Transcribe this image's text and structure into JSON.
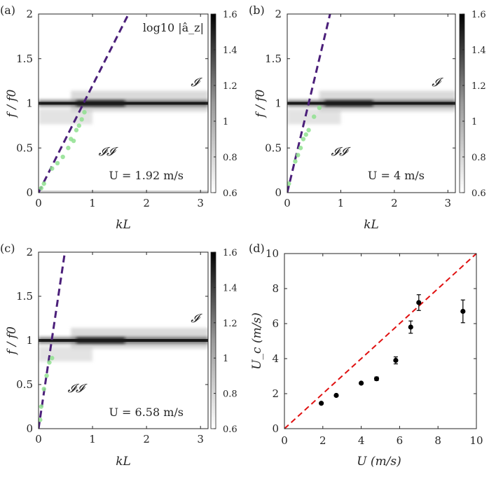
{
  "chart_data": [
    {
      "panel": "(a)",
      "type": "heatmap",
      "xlabel": "kL",
      "ylabel": "f / f0",
      "xlim": [
        0,
        3.14
      ],
      "ylim": [
        0,
        2
      ],
      "xticks": [
        "0",
        "1",
        "2",
        "3"
      ],
      "yticks": [
        "0",
        "0.5",
        "1",
        "1.5",
        "2"
      ],
      "colorbar": {
        "label": "log10 |â_z|",
        "range": [
          0.6,
          1.6
        ],
        "ticks": [
          "0.6",
          "0.8",
          "1",
          "1.2",
          "1.4",
          "1.6"
        ]
      },
      "annotation": "U = 1.92 m/s",
      "regions": [
        "𝓘",
        "𝓘𝓘"
      ],
      "mode_band_f": 1.0,
      "dashed_line_slope": 1.2,
      "green_points": [
        [
          0.05,
          0.05
        ],
        [
          0.1,
          0.1
        ],
        [
          0.25,
          0.27
        ],
        [
          0.35,
          0.33
        ],
        [
          0.45,
          0.4
        ],
        [
          0.55,
          0.5
        ],
        [
          0.6,
          0.6
        ],
        [
          0.65,
          0.58
        ],
        [
          0.7,
          0.7
        ],
        [
          0.75,
          0.75
        ],
        [
          0.8,
          0.82
        ],
        [
          0.85,
          0.9
        ]
      ]
    },
    {
      "panel": "(b)",
      "type": "heatmap",
      "xlabel": "kL",
      "ylabel": "f / f0",
      "xlim": [
        0,
        3.14
      ],
      "ylim": [
        0,
        2
      ],
      "xticks": [
        "0",
        "1",
        "2",
        "3"
      ],
      "yticks": [
        "0",
        "0.5",
        "1",
        "1.5",
        "2"
      ],
      "colorbar": {
        "label": "",
        "range": [
          0.6,
          1.6
        ],
        "ticks": [
          "0.6",
          "0.8",
          "1",
          "1.2",
          "1.4",
          "1.6"
        ]
      },
      "annotation": "U = 4 m/s",
      "regions": [
        "𝓘",
        "𝓘𝓘"
      ],
      "mode_band_f": 1.0,
      "dashed_line_slope": 2.5,
      "green_points": [
        [
          0.03,
          0.1
        ],
        [
          0.15,
          0.35
        ],
        [
          0.2,
          0.42
        ],
        [
          0.25,
          0.5
        ],
        [
          0.3,
          0.6
        ],
        [
          0.35,
          0.65
        ],
        [
          0.4,
          0.7
        ],
        [
          0.5,
          0.85
        ],
        [
          0.6,
          0.95
        ]
      ]
    },
    {
      "panel": "(c)",
      "type": "heatmap",
      "xlabel": "kL",
      "ylabel": "f / f0",
      "xlim": [
        0,
        3.14
      ],
      "ylim": [
        0,
        2
      ],
      "xticks": [
        "0",
        "1",
        "2",
        "3"
      ],
      "yticks": [
        "0",
        "0.5",
        "1",
        "1.5",
        "2"
      ],
      "colorbar": {
        "label": "",
        "range": [
          0.6,
          1.6
        ],
        "ticks": [
          "0.6",
          "0.8",
          "1",
          "1.2",
          "1.4",
          "1.6"
        ]
      },
      "annotation": "U = 6.58 m/s",
      "regions": [
        "𝓘",
        "𝓘𝓘"
      ],
      "mode_band_f": 1.0,
      "dashed_line_slope": 4.1,
      "green_points": [
        [
          0.03,
          0.1
        ],
        [
          0.05,
          0.25
        ],
        [
          0.1,
          0.45
        ],
        [
          0.15,
          0.6
        ],
        [
          0.2,
          0.75
        ],
        [
          0.25,
          0.8
        ]
      ]
    },
    {
      "panel": "(d)",
      "type": "scatter",
      "xlabel": "U (m/s)",
      "ylabel": "U_c (m/s)",
      "xlim": [
        0,
        10
      ],
      "ylim": [
        0,
        10
      ],
      "xticks": [
        "0",
        "2",
        "4",
        "6",
        "8",
        "10"
      ],
      "yticks": [
        "0",
        "2",
        "4",
        "6",
        "8",
        "10"
      ],
      "reference_line": {
        "style": "dashed",
        "color": "#e01010",
        "from": [
          0,
          0
        ],
        "to": [
          10,
          10
        ]
      },
      "points": [
        {
          "x": 1.92,
          "y": 1.45,
          "err": 0.05
        },
        {
          "x": 2.7,
          "y": 1.9,
          "err": 0.05
        },
        {
          "x": 4.0,
          "y": 2.6,
          "err": 0.05
        },
        {
          "x": 4.8,
          "y": 2.85,
          "err": 0.1
        },
        {
          "x": 5.8,
          "y": 3.9,
          "err": 0.2
        },
        {
          "x": 6.58,
          "y": 5.8,
          "err": 0.35
        },
        {
          "x": 7.0,
          "y": 7.2,
          "err": 0.45
        },
        {
          "x": 9.3,
          "y": 6.7,
          "err": 0.65
        }
      ]
    }
  ],
  "colors": {
    "dashed_line": "#4b1f7a",
    "green_points": "#8fe08f",
    "reference_line": "#e01010",
    "points": "#000000"
  }
}
